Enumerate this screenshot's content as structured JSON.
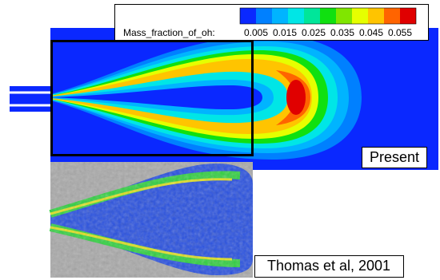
{
  "legend": {
    "title": "Mass_fraction_of_oh:",
    "colors": [
      "#0a28ff",
      "#0080ff",
      "#00b4ff",
      "#00e6e6",
      "#00e69a",
      "#10e010",
      "#80e600",
      "#e6ff00",
      "#ffc400",
      "#ff6400",
      "#e00000"
    ],
    "labels": [
      0.005,
      0.015,
      0.025,
      0.035,
      0.045,
      0.055
    ]
  },
  "panels": [
    {
      "label": "Present"
    },
    {
      "label": "Thomas et al, 2001"
    }
  ]
}
